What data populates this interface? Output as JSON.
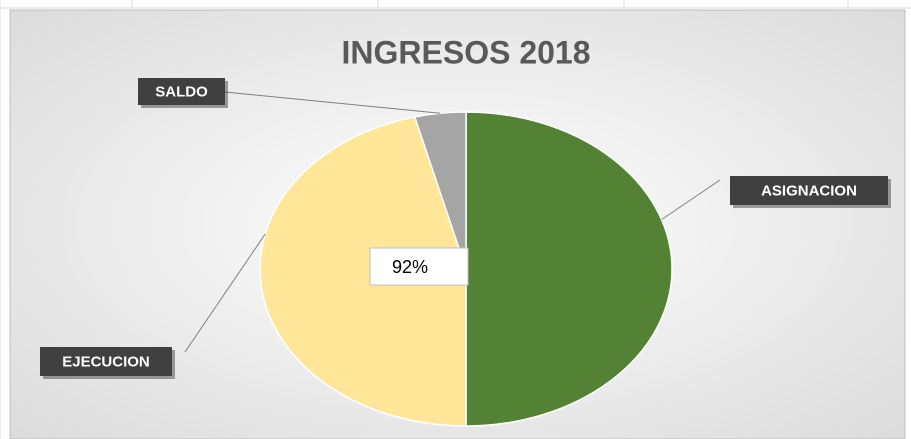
{
  "chart_data": {
    "type": "pie",
    "title": "INGRESOS  2018",
    "categories": [
      "ASIGNACION",
      "EJECUCION",
      "SALDO"
    ],
    "values": [
      100,
      92,
      8
    ],
    "value_labels": [
      null,
      "92%",
      null
    ],
    "colors": [
      "#548235",
      "#ffe699",
      "#a5a5a5"
    ]
  }
}
